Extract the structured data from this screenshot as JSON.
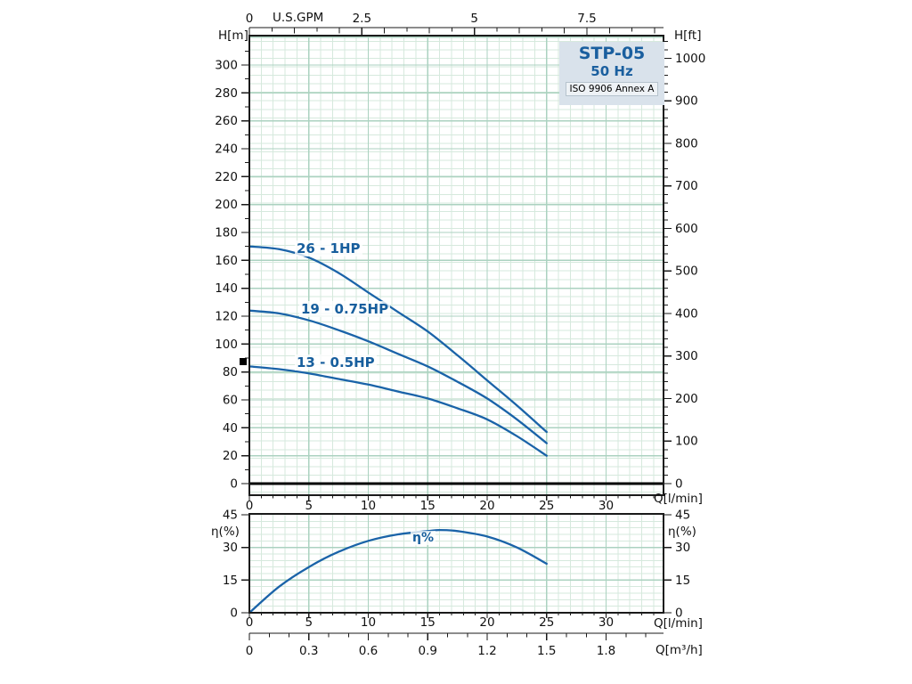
{
  "panel": {
    "model": "STP-05",
    "frequency": "50 Hz",
    "standard": "ISO 9906 Annex A"
  },
  "labels": {
    "gpm_axis": "U.S.GPM",
    "head_m": "H[m]",
    "head_ft": "H[ft]",
    "flow_lpm": "Q[l/min]",
    "flow_m3h": "Q[m³/h]",
    "efficiency": "η(%)"
  },
  "colors": {
    "curve": "#1a63a8",
    "curve_label": "#175e9d",
    "grid_minor": "#d6e9dd",
    "grid_major": "#abd2c0",
    "frame": "#1a1a1a",
    "zero_line": "#000000",
    "panel_bg": "#d9e2eb",
    "panel_text": "#1a5f9f",
    "tick_text": "#111111"
  },
  "chart_data": [
    {
      "type": "line",
      "name": "head-capacity-curves",
      "title": "STP-05",
      "subtitle": "50 Hz",
      "note": "ISO 9906 Annex A",
      "xlabel": "Q[l/min]",
      "x_top_label": "U.S.GPM",
      "ylabel_left": "H[m]",
      "ylabel_right": "H[ft]",
      "xlim_lpm": [
        0,
        34.8
      ],
      "ylim_m": [
        0,
        300
      ],
      "ylim_ft": [
        0,
        1000
      ],
      "x_ticks_lpm": [
        0,
        5,
        10,
        15,
        20,
        25,
        30
      ],
      "x_ticks_gpm": [
        0,
        2.5,
        5,
        7.5
      ],
      "y_ticks_m": [
        0,
        20,
        40,
        60,
        80,
        100,
        120,
        140,
        160,
        180,
        200,
        220,
        240,
        260,
        280,
        300
      ],
      "y_ticks_ft": [
        0,
        100,
        200,
        300,
        400,
        500,
        600,
        700,
        800,
        900,
        1000
      ],
      "grid": true,
      "legend_position": "on-curve",
      "series": [
        {
          "name": "26 - 1HP",
          "units": {
            "x": "l/min",
            "y": "m"
          },
          "points": [
            [
              0,
              170
            ],
            [
              2.5,
              168
            ],
            [
              5,
              162
            ],
            [
              7.5,
              151
            ],
            [
              10,
              137
            ],
            [
              12.5,
              123
            ],
            [
              15,
              109
            ],
            [
              17.5,
              92
            ],
            [
              20,
              74
            ],
            [
              22.5,
              56
            ],
            [
              25,
              37
            ]
          ]
        },
        {
          "name": "19 - 0.75HP",
          "units": {
            "x": "l/min",
            "y": "m"
          },
          "points": [
            [
              0,
              124
            ],
            [
              2.5,
              122
            ],
            [
              5,
              117
            ],
            [
              7.5,
              110
            ],
            [
              10,
              102
            ],
            [
              12.5,
              93
            ],
            [
              15,
              84
            ],
            [
              17.5,
              73
            ],
            [
              20,
              61
            ],
            [
              22.5,
              46
            ],
            [
              25,
              29
            ]
          ]
        },
        {
          "name": "13 - 0.5HP",
          "units": {
            "x": "l/min",
            "y": "m"
          },
          "points": [
            [
              0,
              84
            ],
            [
              2.5,
              82
            ],
            [
              5,
              79
            ],
            [
              7.5,
              75
            ],
            [
              10,
              71
            ],
            [
              12.5,
              66
            ],
            [
              15,
              61
            ],
            [
              17.5,
              54
            ],
            [
              20,
              46
            ],
            [
              22.5,
              34
            ],
            [
              25,
              20
            ]
          ]
        }
      ]
    },
    {
      "type": "line",
      "name": "efficiency-curve",
      "xlabel": "Q[l/min]",
      "x_bottom_label": "Q[m³/h]",
      "ylabel": "η(%)",
      "xlim_lpm": [
        0,
        34.8
      ],
      "ylim_pct": [
        0,
        45
      ],
      "x_ticks_lpm": [
        0,
        5,
        10,
        15,
        20,
        25,
        30
      ],
      "x_ticks_m3h": [
        0,
        0.3,
        0.6,
        0.9,
        1.2,
        1.5,
        1.8
      ],
      "y_ticks_pct": [
        0,
        15,
        30,
        45
      ],
      "grid": true,
      "series": [
        {
          "name": "η%",
          "units": {
            "x": "l/min",
            "y": "%"
          },
          "points": [
            [
              0,
              0
            ],
            [
              2.5,
              12
            ],
            [
              5,
              21
            ],
            [
              7.5,
              28
            ],
            [
              10,
              33
            ],
            [
              12.5,
              36
            ],
            [
              15,
              37.5
            ],
            [
              16,
              38
            ],
            [
              17.5,
              37.5
            ],
            [
              20,
              35
            ],
            [
              22.5,
              30
            ],
            [
              25,
              22.5
            ]
          ]
        }
      ]
    }
  ]
}
